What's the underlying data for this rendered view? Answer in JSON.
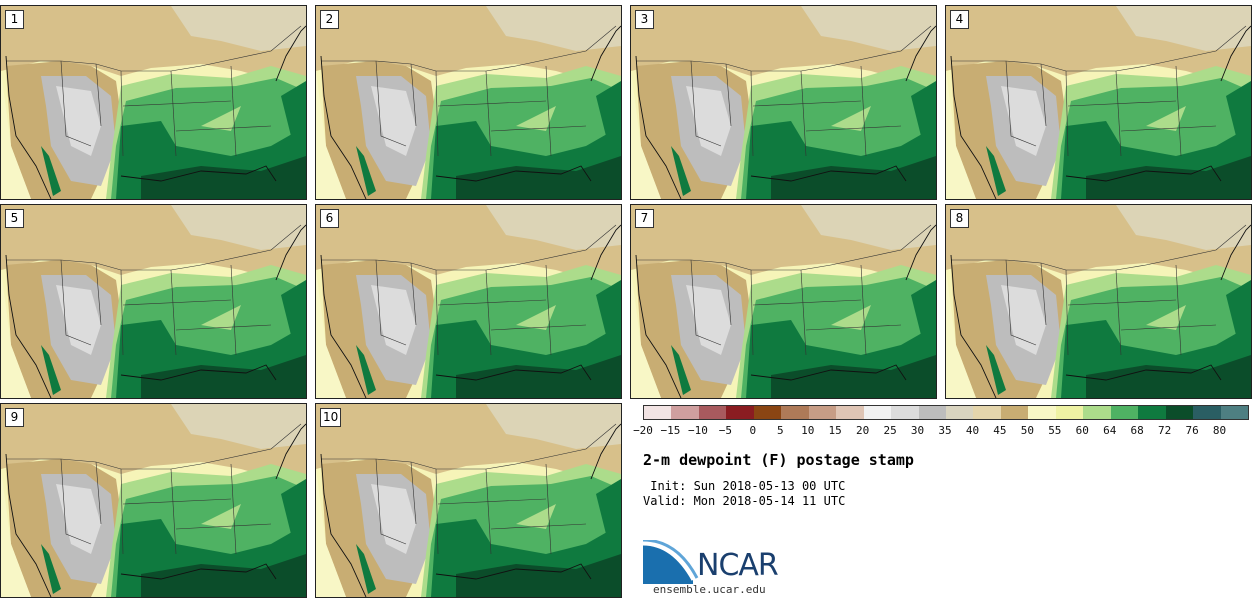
{
  "panels": [
    {
      "label": "1"
    },
    {
      "label": "2"
    },
    {
      "label": "3"
    },
    {
      "label": "4"
    },
    {
      "label": "5"
    },
    {
      "label": "6"
    },
    {
      "label": "7"
    },
    {
      "label": "8"
    },
    {
      "label": "9"
    },
    {
      "label": "10"
    }
  ],
  "colorbar": {
    "colors": [
      "#f2e4e4",
      "#cf9f9f",
      "#a85a5e",
      "#8a1c21",
      "#8a4513",
      "#ae7a58",
      "#c79d86",
      "#dfc5b5",
      "#f1f1f1",
      "#dcdcdc",
      "#bdbdbd",
      "#d9d4c0",
      "#e4d5ac",
      "#c8ad73",
      "#f8f7c6",
      "#eef2a4",
      "#acdc8b",
      "#4fb263",
      "#0f7a3f",
      "#0b4d2a",
      "#2a5e63",
      "#4e7f82"
    ],
    "tick_labels": [
      "−20",
      "−15",
      "−10",
      "−5",
      "0",
      "5",
      "10",
      "15",
      "20",
      "25",
      "30",
      "35",
      "40",
      "45",
      "50",
      "55",
      "60",
      "64",
      "68",
      "72",
      "76",
      "80"
    ]
  },
  "title": "2-m dewpoint (F) postage stamp",
  "init_line": " Init: Sun 2018-05-13 00 UTC",
  "valid_line": "Valid: Mon 2018-05-14 11 UTC",
  "logo": {
    "text": "NCAR",
    "website": "ensemble.ucar.edu"
  },
  "colors": {
    "gulf_dark": "#0b4d2a",
    "green_mid": "#4fb263",
    "tan": "#c8ad73",
    "gray": "#bdbdbd"
  }
}
